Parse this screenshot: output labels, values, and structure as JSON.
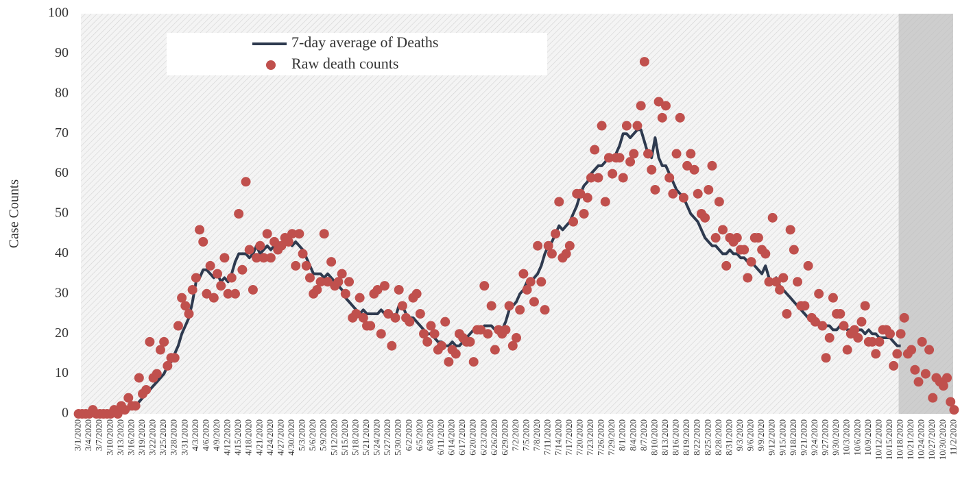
{
  "chart_data": {
    "type": "line_scatter",
    "y_label": "Case Counts",
    "legend": "upper left",
    "shaded_from": "10/18/2020",
    "ylim": [
      0,
      100
    ],
    "yticks": [
      0,
      10,
      20,
      30,
      40,
      50,
      60,
      70,
      80,
      90,
      100
    ],
    "categories": [
      "3/1/2020",
      null,
      null,
      "3/4/2020",
      null,
      null,
      "3/7/2020",
      null,
      null,
      "3/10/2020",
      null,
      null,
      "3/13/2020",
      null,
      null,
      "3/16/2020",
      null,
      null,
      "3/19/2020",
      null,
      null,
      "3/22/2020",
      null,
      null,
      "3/25/2020",
      null,
      null,
      "3/28/2020",
      null,
      null,
      "3/31/2020",
      null,
      null,
      "4/3/2020",
      null,
      null,
      "4/6/2020",
      null,
      null,
      "4/9/2020",
      null,
      null,
      "4/12/2020",
      null,
      null,
      "4/15/2020",
      null,
      null,
      "4/18/2020",
      null,
      null,
      "4/21/2020",
      null,
      null,
      "4/24/2020",
      null,
      null,
      "4/27/2020",
      null,
      null,
      "4/30/2020",
      null,
      null,
      "5/3/2020",
      null,
      null,
      "5/6/2020",
      null,
      null,
      "5/9/2020",
      null,
      null,
      "5/12/2020",
      null,
      null,
      "5/15/2020",
      null,
      null,
      "5/18/2020",
      null,
      null,
      "5/21/2020",
      null,
      null,
      "5/24/2020",
      null,
      null,
      "5/27/2020",
      null,
      null,
      "5/30/2020",
      null,
      null,
      "6/2/2020",
      null,
      null,
      "6/5/2020",
      null,
      null,
      "6/8/2020",
      null,
      null,
      "6/11/2020",
      null,
      null,
      "6/14/2020",
      null,
      null,
      "6/17/2020",
      null,
      null,
      "6/20/2020",
      null,
      null,
      "6/23/2020",
      null,
      null,
      "6/26/2020",
      null,
      null,
      "6/29/2020",
      null,
      null,
      "7/2/2020",
      null,
      null,
      "7/5/2020",
      null,
      null,
      "7/8/2020",
      null,
      null,
      "7/11/2020",
      null,
      null,
      "7/14/2020",
      null,
      null,
      "7/17/2020",
      null,
      null,
      "7/20/2020",
      null,
      null,
      "7/23/2020",
      null,
      null,
      "7/26/2020",
      null,
      null,
      "7/29/2020",
      null,
      null,
      "8/1/2020",
      null,
      null,
      "8/4/2020",
      null,
      null,
      "8/7/2020",
      null,
      null,
      "8/10/2020",
      null,
      null,
      "8/13/2020",
      null,
      null,
      "8/16/2020",
      null,
      null,
      "8/19/2020",
      null,
      null,
      "8/22/2020",
      null,
      null,
      "8/25/2020",
      null,
      null,
      "8/28/2020",
      null,
      null,
      "8/31/2020",
      null,
      null,
      "9/3/2020",
      null,
      null,
      "9/6/2020",
      null,
      null,
      "9/9/2020",
      null,
      null,
      "9/12/2020",
      null,
      null,
      "9/15/2020",
      null,
      null,
      "9/18/2020",
      null,
      null,
      "9/21/2020",
      null,
      null,
      "9/24/2020",
      null,
      null,
      "9/27/2020",
      null,
      null,
      "9/30/2020",
      null,
      null,
      "10/3/2020",
      null,
      null,
      "10/6/2020",
      null,
      null,
      "10/9/2020",
      null,
      null,
      "10/12/2020",
      null,
      null,
      "10/15/2020",
      null,
      null,
      "10/18/2020",
      null,
      null,
      "10/21/2020",
      null,
      null,
      "10/24/2020",
      null,
      null,
      "10/27/2020",
      null,
      null,
      "10/30/2020",
      null,
      null,
      "11/2/2020"
    ],
    "series": [
      {
        "name": "7-day average of Deaths",
        "kind": "line",
        "color": "#2e3a4f",
        "values": [
          0,
          0,
          0,
          0,
          0,
          0,
          0,
          0,
          0,
          0,
          0.1,
          0.3,
          0.5,
          0.8,
          1,
          1.5,
          2,
          3,
          4,
          5,
          6,
          7,
          8,
          9,
          10,
          12,
          13,
          15,
          17,
          20,
          22,
          24,
          28,
          33,
          34,
          36,
          36,
          35,
          34,
          35,
          33,
          34,
          33,
          35,
          38,
          40,
          40,
          40,
          39,
          40,
          42,
          40,
          41,
          42,
          41,
          42,
          43,
          42,
          43,
          43,
          42,
          43,
          42,
          41,
          39,
          37,
          35,
          35,
          35,
          34,
          35,
          34,
          33,
          32,
          31,
          29,
          28,
          27,
          26,
          25,
          26,
          25,
          25,
          25,
          25,
          26,
          25,
          25,
          25,
          24,
          27,
          27,
          25,
          24,
          24,
          23,
          22,
          21,
          20,
          20,
          19,
          18,
          18,
          17,
          17,
          18,
          17,
          17,
          18,
          19,
          20,
          21,
          21,
          21,
          22,
          22,
          22,
          21,
          20,
          21,
          23,
          26,
          27,
          28,
          30,
          31,
          33,
          33,
          34,
          35,
          37,
          40,
          42,
          43,
          45,
          47,
          46,
          47,
          48,
          50,
          52,
          55,
          57,
          58,
          60,
          61,
          62,
          62,
          63,
          64,
          64,
          65,
          67,
          70,
          70,
          69,
          70,
          71,
          71,
          68,
          65,
          64,
          69,
          64,
          62,
          62,
          60,
          58,
          56,
          55,
          54,
          52,
          50,
          49,
          48,
          46,
          44,
          43,
          42,
          42,
          41,
          40,
          40,
          41,
          40,
          40,
          39,
          39,
          38,
          38,
          37,
          36,
          35,
          37,
          34,
          33,
          34,
          32,
          31,
          30,
          29,
          28,
          27,
          26,
          25,
          24,
          23,
          23,
          23,
          22,
          22,
          22,
          21,
          21,
          22,
          22,
          21,
          21,
          21,
          21,
          21,
          20,
          21,
          20,
          20,
          19,
          19,
          19,
          19,
          18,
          17,
          17,
          null,
          null,
          null,
          null,
          null,
          null,
          null,
          null,
          null,
          null,
          null,
          null,
          null,
          null,
          null
        ]
      },
      {
        "name": "Raw death counts",
        "kind": "scatter",
        "color": "#c0504d",
        "values": [
          0,
          0,
          0,
          0,
          1,
          0,
          0,
          0,
          0,
          0,
          1,
          0,
          2,
          1,
          4,
          2,
          2,
          9,
          5,
          6,
          18,
          9,
          10,
          16,
          18,
          12,
          14,
          14,
          22,
          29,
          27,
          25,
          31,
          34,
          46,
          43,
          30,
          37,
          29,
          35,
          32,
          39,
          30,
          34,
          30,
          50,
          36,
          58,
          41,
          31,
          39,
          42,
          39,
          45,
          39,
          43,
          41,
          42,
          44,
          43,
          45,
          37,
          45,
          40,
          37,
          34,
          30,
          31,
          33,
          45,
          33,
          38,
          32,
          33,
          35,
          30,
          33,
          24,
          25,
          29,
          24,
          22,
          22,
          30,
          31,
          20,
          32,
          25,
          17,
          24,
          31,
          27,
          24,
          23,
          29,
          30,
          25,
          20,
          18,
          22,
          20,
          16,
          17,
          23,
          13,
          16,
          15,
          20,
          19,
          18,
          18,
          13,
          21,
          21,
          32,
          20,
          27,
          16,
          21,
          20,
          21,
          27,
          17,
          19,
          26,
          35,
          31,
          33,
          28,
          42,
          33,
          26,
          42,
          40,
          45,
          53,
          39,
          40,
          42,
          48,
          55,
          55,
          50,
          54,
          59,
          66,
          59,
          72,
          53,
          64,
          60,
          64,
          64,
          59,
          72,
          63,
          65,
          72,
          77,
          88,
          65,
          61,
          56,
          78,
          74,
          77,
          59,
          55,
          65,
          74,
          54,
          62,
          65,
          61,
          55,
          50,
          49,
          56,
          62,
          44,
          53,
          46,
          37,
          44,
          43,
          44,
          41,
          41,
          34,
          38,
          44,
          44,
          41,
          40,
          33,
          49,
          33,
          31,
          34,
          25,
          46,
          41,
          33,
          27,
          27,
          37,
          24,
          23,
          30,
          22,
          14,
          19,
          29,
          25,
          25,
          22,
          16,
          20,
          21,
          19,
          23,
          27,
          18,
          18,
          15,
          18,
          21,
          21,
          20,
          12,
          15,
          20,
          24,
          15,
          16,
          11,
          8,
          18,
          10,
          16,
          4,
          9,
          8,
          7,
          9,
          3,
          1
        ]
      }
    ]
  }
}
